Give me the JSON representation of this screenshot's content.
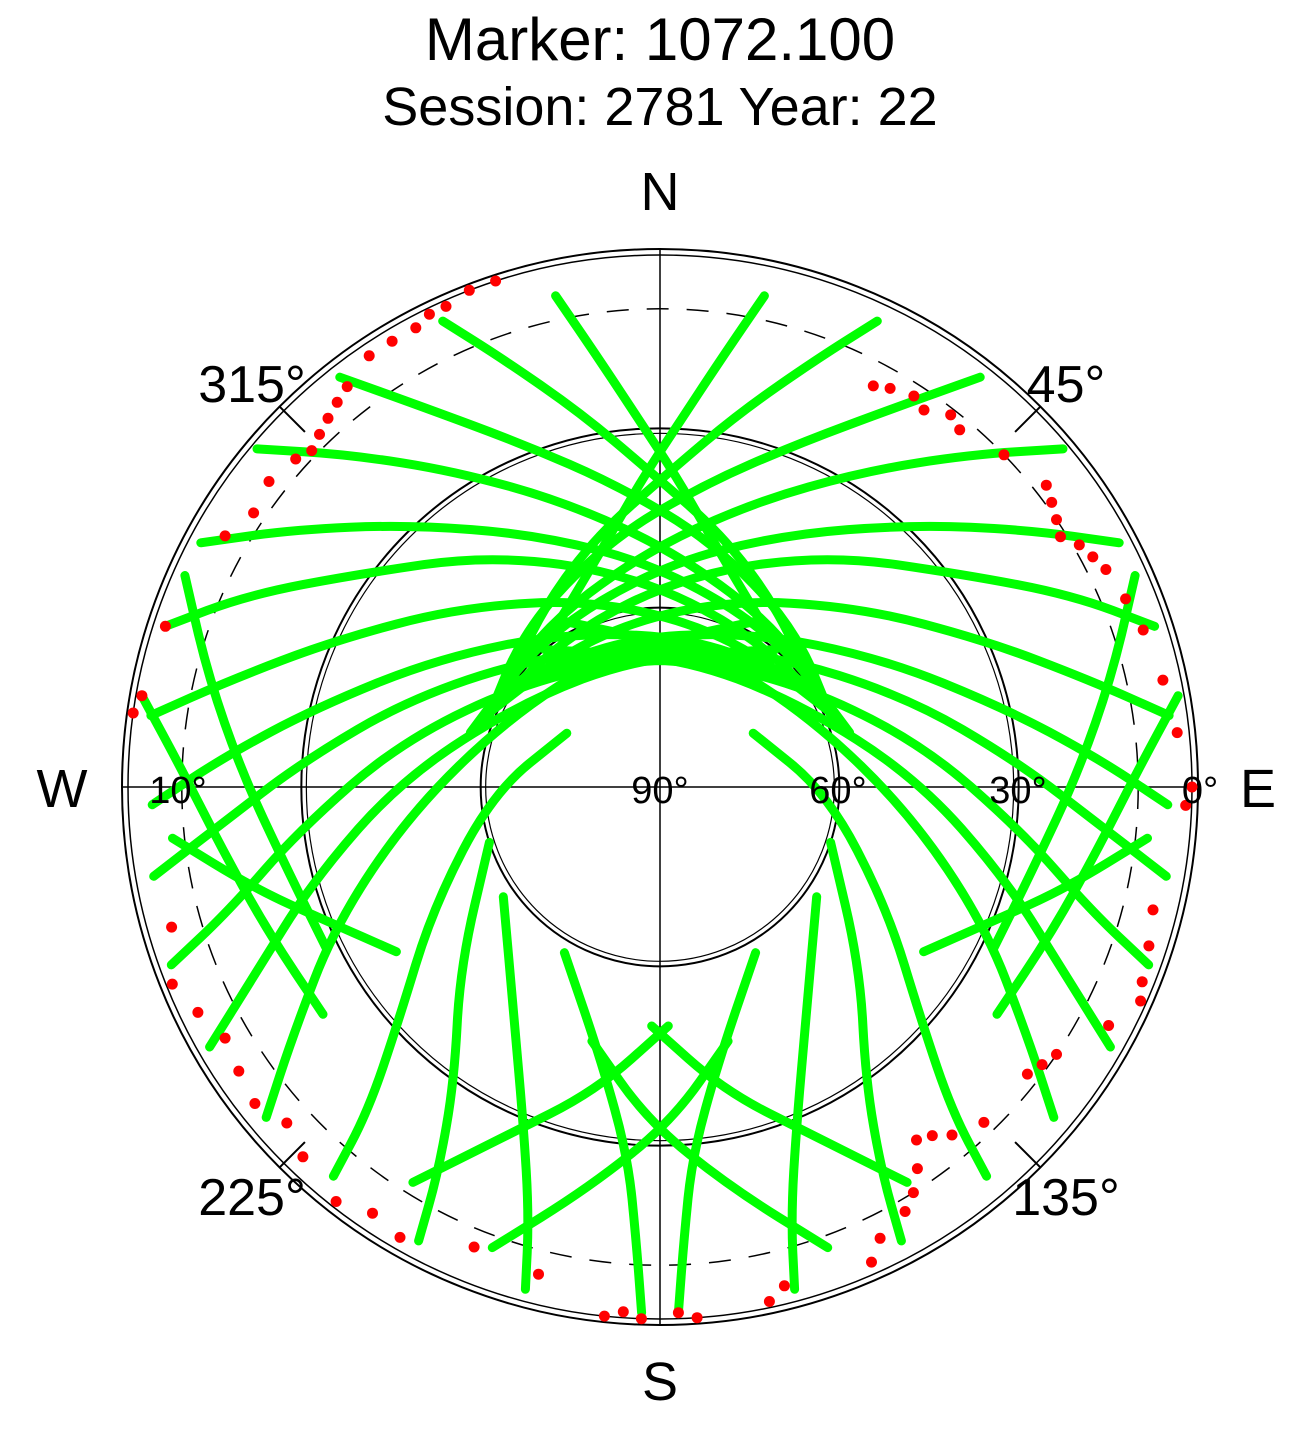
{
  "chart_data": {
    "type": "scatter",
    "projection": "polar-skyplot",
    "title": "Marker: 1072.100",
    "subtitle": "Session: 2781 Year: 22",
    "cardinal_labels": {
      "north": "N",
      "east": "E",
      "south": "S",
      "west": "W"
    },
    "azimuth_labels": [
      {
        "azimuth": 45,
        "text": "45°"
      },
      {
        "azimuth": 135,
        "text": "135°"
      },
      {
        "azimuth": 225,
        "text": "225°"
      },
      {
        "azimuth": 315,
        "text": "315°"
      }
    ],
    "elevation_labels": [
      {
        "elevation": 0,
        "text": "0°"
      },
      {
        "elevation": 30,
        "text": "30°"
      },
      {
        "elevation": 60,
        "text": "60°"
      },
      {
        "elevation": 90,
        "text": "90°"
      },
      {
        "elevation": 10,
        "text": "10°"
      }
    ],
    "elevation_range": [
      0,
      90
    ],
    "elevation_mask_deg": 10,
    "grid": true,
    "colors": {
      "tracked": "#00ff00",
      "flagged": "#ff0000",
      "grid": "#000000"
    },
    "series": [
      {
        "color": "#00ff00",
        "tracks": [
          {
            "az": [
              -12,
              -8,
              -3,
              3,
              10,
              20,
              33
            ],
            "el": [
              6,
              18,
              29,
              38,
              46,
              53,
              58
            ]
          },
          {
            "az": [
              -25,
              -20,
              -12,
              -2,
              15,
              36,
              60
            ],
            "el": [
              4,
              14,
              26,
              37,
              47,
              55,
              60
            ]
          },
          {
            "az": [
              -38,
              -32,
              -22,
              -8,
              12,
              40,
              70
            ],
            "el": [
              3,
              15,
              28,
              39,
              48,
              55,
              59
            ]
          },
          {
            "az": [
              -50,
              -43,
              -33,
              -18,
              5,
              38,
              72
            ],
            "el": [
              2,
              14,
              27,
              40,
              51,
              57,
              58
            ]
          },
          {
            "az": [
              -62,
              -55,
              -44,
              -26,
              0,
              38,
              74
            ],
            "el": [
              3,
              15,
              29,
              43,
              53,
              58,
              57
            ]
          },
          {
            "az": [
              -72,
              -65,
              -55,
              -36,
              -8,
              30,
              70
            ],
            "el": [
              3,
              14,
              28,
              42,
              54,
              60,
              58
            ]
          },
          {
            "az": [
              -82,
              -76,
              -66,
              -48,
              -18,
              25,
              66
            ],
            "el": [
              4,
              16,
              30,
              45,
              57,
              62,
              59
            ]
          },
          {
            "az": [
              -92,
              -86,
              -77,
              -60,
              -30,
              18,
              60
            ],
            "el": [
              5,
              17,
              31,
              47,
              60,
              64,
              59
            ]
          },
          {
            "az": [
              -100,
              -95,
              -86,
              -70,
              -40,
              10,
              54
            ],
            "el": [
              4,
              16,
              30,
              46,
              61,
              66,
              60
            ]
          },
          {
            "az": [
              -110,
              -106,
              -97,
              -80,
              -50,
              0,
              48
            ],
            "el": [
              3,
              15,
              29,
              46,
              62,
              68,
              61
            ]
          },
          {
            "az": [
              -120,
              -115,
              -105,
              -88,
              -58,
              -8,
              40
            ],
            "el": [
              3,
              15,
              30,
              47,
              63,
              68,
              60
            ]
          },
          {
            "az": [
              -130,
              -124,
              -113,
              -96,
              -66,
              -20,
              30
            ],
            "el": [
              4,
              16,
              31,
              48,
              62,
              66,
              58
            ]
          },
          {
            "az": [
              12,
              8,
              3,
              -3,
              -10,
              -20,
              -33
            ],
            "el": [
              6,
              18,
              29,
              38,
              46,
              53,
              58
            ]
          },
          {
            "az": [
              25,
              20,
              12,
              2,
              -15,
              -36,
              -60
            ],
            "el": [
              4,
              14,
              26,
              37,
              47,
              55,
              60
            ]
          },
          {
            "az": [
              38,
              32,
              22,
              8,
              -12,
              -40,
              -70
            ],
            "el": [
              3,
              15,
              28,
              39,
              48,
              55,
              59
            ]
          },
          {
            "az": [
              50,
              43,
              33,
              18,
              -5,
              -38,
              -72
            ],
            "el": [
              2,
              14,
              27,
              40,
              51,
              57,
              58
            ]
          },
          {
            "az": [
              62,
              55,
              44,
              26,
              0,
              -38,
              -74
            ],
            "el": [
              3,
              15,
              29,
              43,
              53,
              58,
              57
            ]
          },
          {
            "az": [
              72,
              65,
              55,
              36,
              8,
              -30,
              -70
            ],
            "el": [
              3,
              14,
              28,
              42,
              54,
              60,
              58
            ]
          },
          {
            "az": [
              82,
              76,
              66,
              48,
              18,
              -25,
              -66
            ],
            "el": [
              4,
              16,
              30,
              45,
              57,
              62,
              59
            ]
          },
          {
            "az": [
              92,
              86,
              77,
              60,
              30,
              -18,
              -60
            ],
            "el": [
              5,
              17,
              31,
              47,
              60,
              64,
              59
            ]
          },
          {
            "az": [
              100,
              95,
              86,
              70,
              40,
              -10,
              -54
            ],
            "el": [
              4,
              16,
              30,
              46,
              61,
              66,
              60
            ]
          },
          {
            "az": [
              110,
              106,
              97,
              80,
              50,
              0,
              -48
            ],
            "el": [
              3,
              15,
              29,
              46,
              62,
              68,
              61
            ]
          },
          {
            "az": [
              120,
              115,
              105,
              88,
              58,
              8,
              -40
            ],
            "el": [
              3,
              15,
              30,
              47,
              63,
              68,
              60
            ]
          },
          {
            "az": [
              130,
              124,
              113,
              96,
              66,
              20,
              -30
            ],
            "el": [
              4,
              16,
              31,
              48,
              62,
              66,
              58
            ]
          },
          {
            "az": [
              140,
              138,
              132,
              118,
              92,
              60
            ],
            "el": [
              5,
              17,
              31,
              47,
              62,
              72
            ]
          },
          {
            "az": [
              152,
              150,
              145,
              132,
              108
            ],
            "el": [
              4,
              16,
              30,
              45,
              60
            ]
          },
          {
            "az": [
              165,
              163,
              158,
              148,
              125
            ],
            "el": [
              3,
              15,
              29,
              44,
              58
            ]
          },
          {
            "az": [
              178,
              177,
              175,
              168,
              150
            ],
            "el": [
              2,
              14,
              28,
              43,
              58
            ]
          },
          {
            "az": [
              -140,
              -138,
              -132,
              -118,
              -92,
              -60
            ],
            "el": [
              5,
              17,
              31,
              47,
              62,
              72
            ]
          },
          {
            "az": [
              -152,
              -150,
              -145,
              -132,
              -108
            ],
            "el": [
              4,
              16,
              30,
              45,
              60
            ]
          },
          {
            "az": [
              -165,
              -163,
              -158,
              -148,
              -125
            ],
            "el": [
              3,
              15,
              29,
              44,
              58
            ]
          },
          {
            "az": [
              -178,
              -177,
              -175,
              -168,
              -150
            ],
            "el": [
              2,
              14,
              28,
              43,
              58
            ]
          },
          {
            "az": [
              -160,
              -170,
              178,
              165
            ],
            "el": [
              8,
              22,
              34,
              46
            ]
          },
          {
            "az": [
              160,
              170,
              -178,
              -165
            ],
            "el": [
              8,
              22,
              34,
              46
            ]
          },
          {
            "az": [
              -148,
              -156,
              -168,
              178
            ],
            "el": [
              12,
              26,
              38,
              50
            ]
          },
          {
            "az": [
              148,
              156,
              168,
              -178
            ],
            "el": [
              12,
              26,
              38,
              50
            ]
          },
          {
            "az": [
              96,
              104,
              112,
              122
            ],
            "el": [
              8,
              20,
              30,
              38
            ]
          },
          {
            "az": [
              -96,
              -104,
              -112,
              -122
            ],
            "el": [
              8,
              20,
              30,
              38
            ]
          },
          {
            "az": [
              80,
              88,
              98,
              110,
              124
            ],
            "el": [
              2,
              10,
              16,
              20,
              22
            ]
          },
          {
            "az": [
              -80,
              -88,
              -98,
              -110,
              -124
            ],
            "el": [
              2,
              10,
              16,
              20,
              22
            ]
          },
          {
            "az": [
              66,
              76,
              88,
              102,
              116
            ],
            "el": [
              3,
              12,
              20,
              26,
              28
            ]
          },
          {
            "az": [
              -66,
              -76,
              -88,
              -102,
              -116
            ],
            "el": [
              3,
              12,
              20,
              26,
              28
            ]
          }
        ]
      },
      {
        "color": "#ff0000",
        "points": [
          {
            "az": -18,
            "el": 1
          },
          {
            "az": -21,
            "el": 1
          },
          {
            "az": -24,
            "el": 2
          },
          {
            "az": -26,
            "el": 2
          },
          {
            "az": -28,
            "el": 3
          },
          {
            "az": -31,
            "el": 3
          },
          {
            "az": -34,
            "el": 3
          },
          {
            "az": -38,
            "el": 5
          },
          {
            "az": -40,
            "el": 6
          },
          {
            "az": -42,
            "el": 7
          },
          {
            "az": -44,
            "el": 8
          },
          {
            "az": -46,
            "el": 9
          },
          {
            "az": -48,
            "el": 8
          },
          {
            "az": -52,
            "el": 7
          },
          {
            "az": -56,
            "el": 8
          },
          {
            "az": -60,
            "el": 6
          },
          {
            "az": -72,
            "el": 3
          },
          {
            "az": -80,
            "el": 2
          },
          {
            "az": -82,
            "el": 1
          },
          {
            "az": 28,
            "el": 14
          },
          {
            "az": 30,
            "el": 13
          },
          {
            "az": 33,
            "el": 12
          },
          {
            "az": 35,
            "el": 13
          },
          {
            "az": 38,
            "el": 11
          },
          {
            "az": 40,
            "el": 12
          },
          {
            "az": 46,
            "el": 10
          },
          {
            "az": 52,
            "el": 8
          },
          {
            "az": 54,
            "el": 9
          },
          {
            "az": 56,
            "el": 10
          },
          {
            "az": 58,
            "el": 11
          },
          {
            "az": 60,
            "el": 9
          },
          {
            "az": 62,
            "el": 8
          },
          {
            "az": 64,
            "el": 7
          },
          {
            "az": 68,
            "el": 6
          },
          {
            "az": 72,
            "el": 5
          },
          {
            "az": 78,
            "el": 4
          },
          {
            "az": 84,
            "el": 3
          },
          {
            "az": 90,
            "el": 1
          },
          {
            "az": 92,
            "el": 2
          },
          {
            "az": 104,
            "el": 5
          },
          {
            "az": 108,
            "el": 4
          },
          {
            "az": 112,
            "el": 3
          },
          {
            "az": 114,
            "el": 2
          },
          {
            "az": 118,
            "el": 5
          },
          {
            "az": 124,
            "el": 10
          },
          {
            "az": 126,
            "el": 11
          },
          {
            "az": 128,
            "el": 12
          },
          {
            "az": 136,
            "el": 12
          },
          {
            "az": 140,
            "el": 14
          },
          {
            "az": 142,
            "el": 16
          },
          {
            "az": 144,
            "el": 17
          },
          {
            "az": 146,
            "el": 13
          },
          {
            "az": 148,
            "el": 10
          },
          {
            "az": 150,
            "el": 8
          },
          {
            "az": 154,
            "el": 6
          },
          {
            "az": 156,
            "el": 3
          },
          {
            "az": 166,
            "el": 4
          },
          {
            "az": 168,
            "el": 2
          },
          {
            "az": 176,
            "el": 1
          },
          {
            "az": 178,
            "el": 2
          },
          {
            "az": -178,
            "el": 1
          },
          {
            "az": -176,
            "el": 2
          },
          {
            "az": -174,
            "el": 1
          },
          {
            "az": -166,
            "el": 6
          },
          {
            "az": -158,
            "el": 7
          },
          {
            "az": -150,
            "el": 3
          },
          {
            "az": -146,
            "el": 4
          },
          {
            "az": -142,
            "el": 2
          },
          {
            "az": -136,
            "el": 4
          },
          {
            "az": -132,
            "el": 6
          },
          {
            "az": -128,
            "el": 4
          },
          {
            "az": -124,
            "el": 5
          },
          {
            "az": -120,
            "el": 6
          },
          {
            "az": -116,
            "el": 4
          },
          {
            "az": -112,
            "el": 2
          },
          {
            "az": -106,
            "el": 5
          }
        ]
      }
    ]
  }
}
